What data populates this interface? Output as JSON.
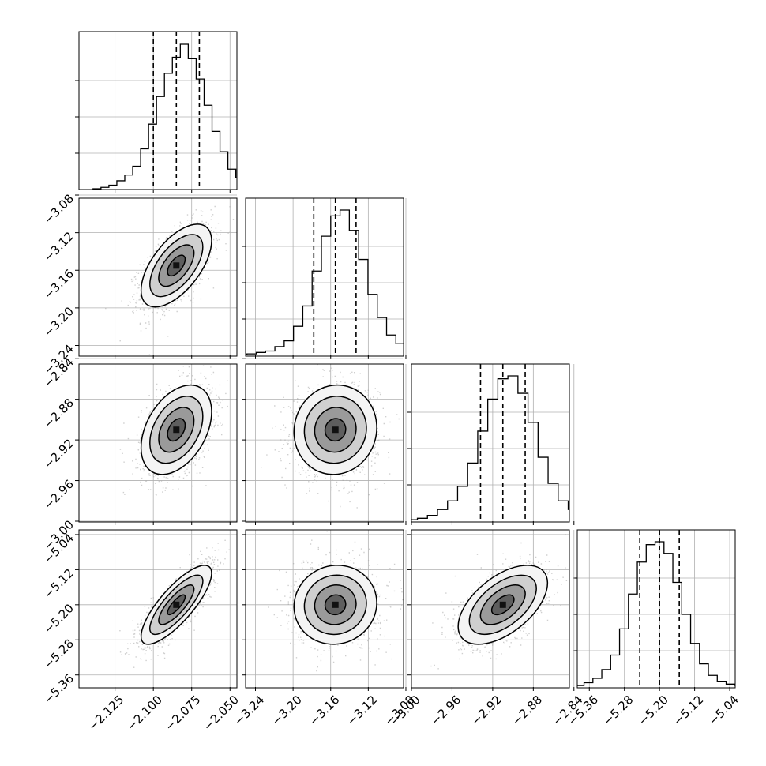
{
  "chart_data": {
    "type": "corner",
    "colors": {
      "line": "#000000",
      "grid": "#b0b0b0",
      "scatter": "#a0a0a0"
    },
    "grid": true,
    "parameters": [
      {
        "index": 0,
        "median": -2.085,
        "q16": -2.1,
        "q84": -2.07,
        "sigma": 0.0115,
        "range": [
          -2.1485,
          -2.0455
        ],
        "ticks": [
          -2.125,
          -2.1,
          -2.075,
          -2.05
        ],
        "tick_labels": [
          "−2.125",
          "−2.100",
          "−2.075",
          "−2.050"
        ],
        "hist": [
          0.5,
          1.5,
          3,
          6,
          10,
          16,
          28,
          45,
          64,
          80,
          91,
          100,
          90,
          76,
          58,
          40,
          26,
          14,
          8,
          4,
          1.5
        ]
      },
      {
        "index": 1,
        "median": -3.155,
        "q16": -3.178,
        "q84": -3.133,
        "sigma": 0.022,
        "range": [
          -3.2505,
          -3.0825
        ],
        "ticks": [
          -3.24,
          -3.2,
          -3.16,
          -3.12,
          -3.08
        ],
        "tick_labels": [
          "−3.24",
          "−3.20",
          "−3.16",
          "−3.12",
          "−3.08"
        ],
        "hist": [
          0.5,
          1,
          2,
          3,
          6,
          10,
          20,
          34,
          58,
          82,
          96,
          100,
          86,
          66,
          42,
          26,
          14,
          8,
          4,
          2,
          1
        ]
      },
      {
        "index": 2,
        "median": -2.91,
        "q16": -2.932,
        "q84": -2.888,
        "sigma": 0.022,
        "range": [
          -3.0,
          -2.8445
        ],
        "ticks": [
          -3.0,
          -2.96,
          -2.92,
          -2.88,
          -2.84
        ],
        "tick_labels": [
          "−3.00",
          "−2.96",
          "−2.92",
          "−2.88",
          "−2.84"
        ],
        "hist": [
          0.5,
          1,
          2,
          4,
          8,
          14,
          24,
          40,
          62,
          84,
          98,
          100,
          88,
          68,
          44,
          26,
          14,
          8,
          4,
          2,
          1
        ]
      },
      {
        "index": 3,
        "median": -5.2,
        "q16": -5.245,
        "q84": -5.155,
        "sigma": 0.045,
        "range": [
          -5.3875,
          -5.0275
        ],
        "ticks": [
          -5.36,
          -5.28,
          -5.2,
          -5.12,
          -5.04
        ],
        "tick_labels": [
          "−5.36",
          "−5.28",
          "−5.20",
          "−5.12",
          "−5.04"
        ],
        "hist": [
          0.5,
          1,
          3,
          6,
          12,
          22,
          40,
          64,
          86,
          98,
          100,
          92,
          72,
          50,
          30,
          16,
          8,
          4,
          2,
          1,
          0.5
        ]
      }
    ],
    "correlations": [
      [
        1,
        0.6,
        0.4,
        0.8
      ],
      [
        0.6,
        1,
        0.05,
        0.05
      ],
      [
        0.4,
        0.05,
        1,
        0.55
      ],
      [
        0.8,
        0.05,
        0.55,
        1
      ]
    ],
    "contour_levels_sigma": [
      0.5,
      1.0,
      1.5,
      2.0
    ],
    "quantiles": [
      0.16,
      0.5,
      0.84
    ]
  }
}
